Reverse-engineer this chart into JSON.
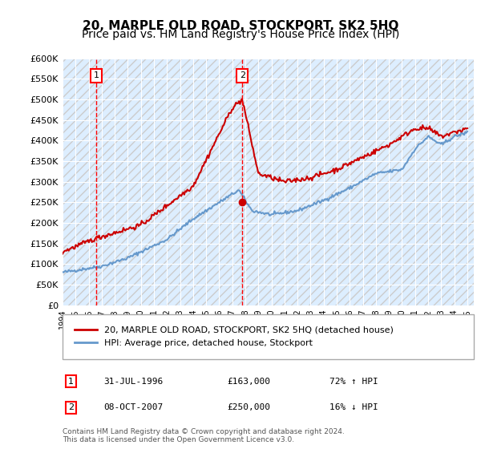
{
  "title": "20, MARPLE OLD ROAD, STOCKPORT, SK2 5HQ",
  "subtitle": "Price paid vs. HM Land Registry's House Price Index (HPI)",
  "ylabel": "",
  "ylim": [
    0,
    600000
  ],
  "yticks": [
    0,
    50000,
    100000,
    150000,
    200000,
    250000,
    300000,
    350000,
    400000,
    450000,
    500000,
    550000,
    600000
  ],
  "xlim_start": 1994.0,
  "xlim_end": 2025.5,
  "sale1_date": 1996.58,
  "sale1_price": 163000,
  "sale1_label": "1",
  "sale2_date": 2007.77,
  "sale2_price": 250000,
  "sale2_label": "2",
  "hpi_line_color": "#6699cc",
  "price_line_color": "#cc0000",
  "dashed_line_color": "#ff0000",
  "background_color": "#ddeeff",
  "plot_bg_color": "#ddeeff",
  "hatch_color": "#cccccc",
  "legend_label_red": "20, MARPLE OLD ROAD, STOCKPORT, SK2 5HQ (detached house)",
  "legend_label_blue": "HPI: Average price, detached house, Stockport",
  "annotation1": [
    "1",
    "31-JUL-1996",
    "£163,000",
    "72% ↑ HPI"
  ],
  "annotation2": [
    "2",
    "08-OCT-2007",
    "£250,000",
    "16% ↓ HPI"
  ],
  "footer": "Contains HM Land Registry data © Crown copyright and database right 2024.\nThis data is licensed under the Open Government Licence v3.0.",
  "title_fontsize": 11,
  "subtitle_fontsize": 10
}
